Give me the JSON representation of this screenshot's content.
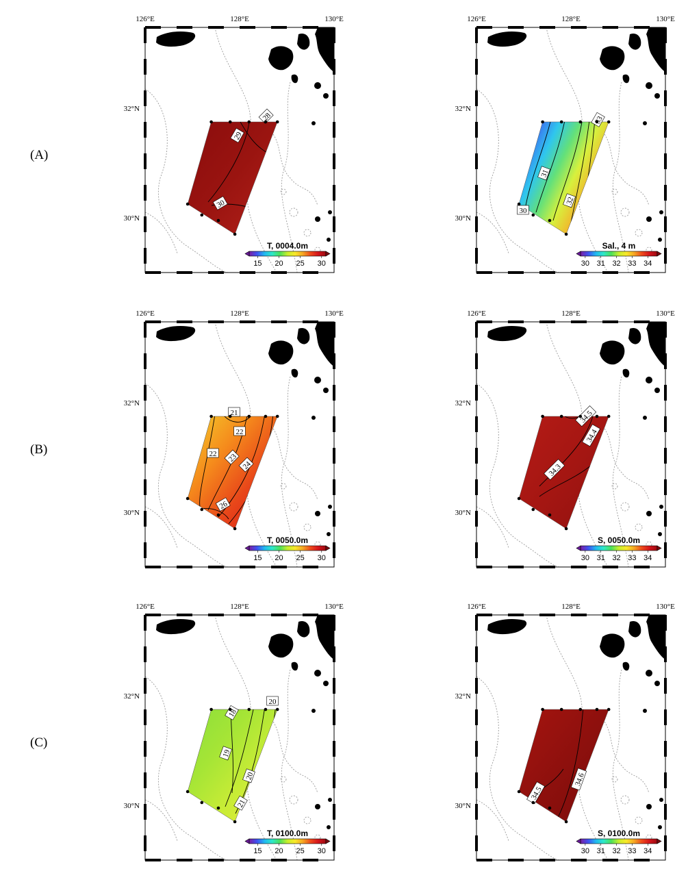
{
  "row_labels": [
    "(A)",
    "(B)",
    "(C)"
  ],
  "lon_labels": [
    "126°E",
    "128°E",
    "130°E"
  ],
  "lat_labels": [
    "32°N",
    "30°N"
  ],
  "colors": {
    "land": "#000000",
    "isobath": "#9a9a9a",
    "contour": "#000000"
  },
  "panels": [
    {
      "id": "A-temp",
      "row": 0,
      "col": 0,
      "variable": "temperature",
      "cb_title": "T, 0004.0m",
      "cb_bold": true,
      "cb_ticks": [
        "15",
        "20",
        "25",
        "30"
      ],
      "cb_range": [
        13,
        31
      ],
      "fill": [
        "#8c0d0d",
        "#9a1410",
        "#b0201a"
      ],
      "contour_labels": [
        "28",
        "29",
        "30"
      ]
    },
    {
      "id": "A-sal",
      "row": 0,
      "col": 1,
      "variable": "salinity",
      "cb_title": "Sal., 4 m",
      "cb_bold": false,
      "cb_ticks": [
        "30",
        "31",
        "32",
        "33",
        "34"
      ],
      "cb_range": [
        29.7,
        34.6
      ],
      "fill": [
        "#5a2bd6",
        "#3d6cf0",
        "#2fc6ee",
        "#63e07a",
        "#d7f03d",
        "#f2b62c",
        "#e6301d"
      ],
      "contour_labels": [
        "30",
        "31",
        "32",
        "33"
      ]
    },
    {
      "id": "B-temp",
      "row": 1,
      "col": 0,
      "variable": "temperature",
      "cb_title": "T, 0050.0m",
      "cb_bold": true,
      "cb_ticks": [
        "15",
        "20",
        "25",
        "30"
      ],
      "cb_range": [
        13,
        31
      ],
      "fill": [
        "#f4c52a",
        "#f58a1c",
        "#e8461a",
        "#d91e14"
      ],
      "contour_labels": [
        "21",
        "22",
        "22",
        "23",
        "24",
        "26"
      ]
    },
    {
      "id": "B-sal",
      "row": 1,
      "col": 1,
      "variable": "salinity",
      "cb_title": "S, 0050.0m",
      "cb_bold": true,
      "cb_ticks": [
        "30",
        "31",
        "32",
        "33",
        "34"
      ],
      "cb_range": [
        29.7,
        34.6
      ],
      "fill": [
        "#b31b16",
        "#a51612",
        "#931210"
      ],
      "contour_labels": [
        "34.5",
        "34.4",
        "34.3"
      ]
    },
    {
      "id": "C-temp",
      "row": 2,
      "col": 0,
      "variable": "temperature",
      "cb_title": "T, 0100.0m",
      "cb_bold": true,
      "cb_ticks": [
        "15",
        "20",
        "25",
        "30"
      ],
      "cb_range": [
        13,
        31
      ],
      "fill": [
        "#8fe03a",
        "#a6e536",
        "#c9ec36",
        "#e7ec36"
      ],
      "contour_labels": [
        "18",
        "19",
        "20",
        "20",
        "21"
      ]
    },
    {
      "id": "C-sal",
      "row": 2,
      "col": 1,
      "variable": "salinity",
      "cb_title": "S, 0100.0m",
      "cb_bold": true,
      "cb_ticks": [
        "30",
        "31",
        "32",
        "33",
        "34"
      ],
      "cb_range": [
        29.7,
        34.6
      ],
      "fill": [
        "#a3140f",
        "#8e100d",
        "#7c0c0b"
      ],
      "contour_labels": [
        "34.5",
        "34.6"
      ]
    }
  ]
}
